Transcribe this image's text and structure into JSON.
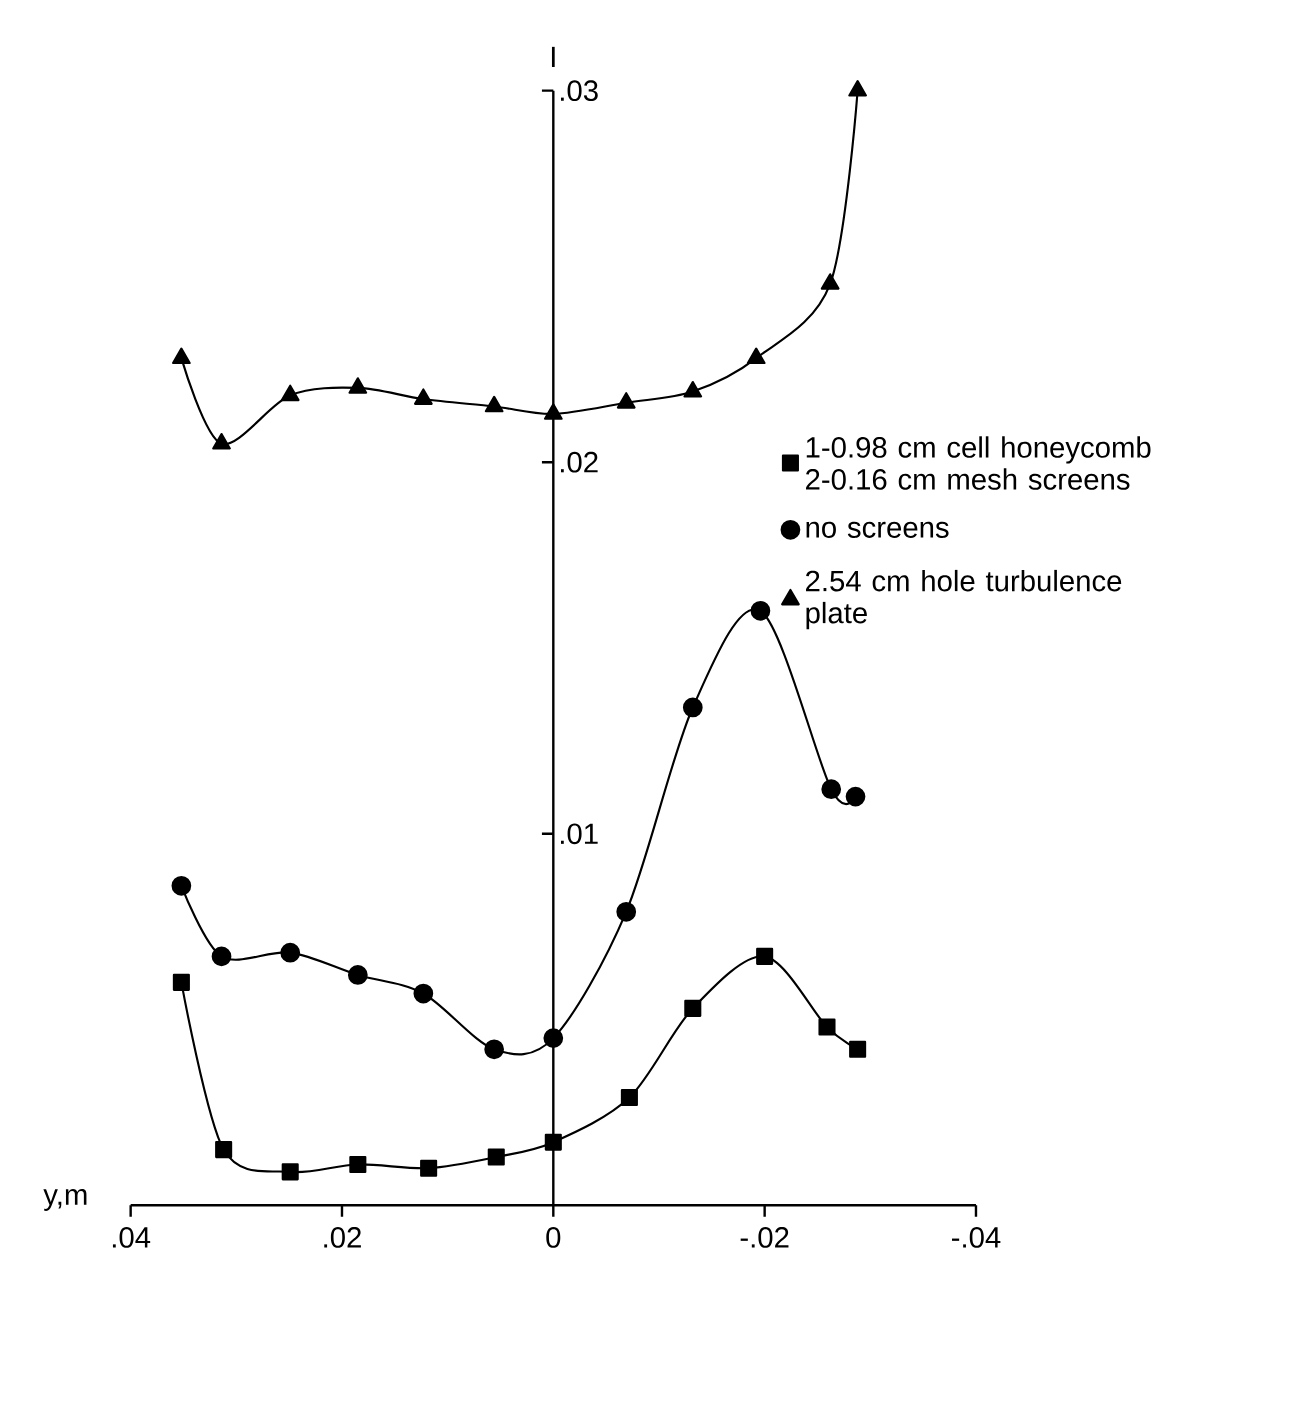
{
  "chart_data": {
    "type": "line",
    "xlabel": "y,m",
    "ylabel": "I",
    "xlim": [
      0.04,
      -0.04
    ],
    "ylim": [
      0,
      0.03
    ],
    "xticks": [
      {
        "value": 0.04,
        "label": ".04"
      },
      {
        "value": 0.02,
        "label": ".02"
      },
      0,
      {
        "value": -0.02,
        "label": "-.02"
      },
      {
        "value": -0.04,
        "label": "-.04"
      }
    ],
    "yticks": [
      {
        "value": 0.01,
        "label": ".01"
      },
      {
        "value": 0.02,
        "label": ".02"
      },
      {
        "value": 0.03,
        "label": ".03"
      }
    ],
    "legend": "right",
    "grid": false,
    "series": [
      {
        "name": "1-0.98 cm cell honeycomb 2-0.16 cm mesh screens",
        "color": "#000000",
        "marker": "square",
        "x": [
          0.0352,
          0.0312,
          0.0249,
          0.0185,
          0.0118,
          0.0054,
          0,
          -0.0072,
          -0.0132,
          -0.02,
          -0.0259,
          -0.0288
        ],
        "values": [
          0.006,
          0.0015,
          0.0009,
          0.0011,
          0.001,
          0.0013,
          0.0017,
          0.0029,
          0.0053,
          0.0067,
          0.0048,
          0.0042
        ]
      },
      {
        "name": "no screens",
        "color": "#000000",
        "marker": "circle",
        "x": [
          0.0352,
          0.0314,
          0.0249,
          0.0185,
          0.0123,
          0.0056,
          0,
          -0.0069,
          -0.0132,
          -0.0196,
          -0.0263,
          -0.0286
        ],
        "values": [
          0.0086,
          0.0067,
          0.0068,
          0.0062,
          0.0057,
          0.0042,
          0.0045,
          0.0079,
          0.0134,
          0.016,
          0.0112,
          0.011
        ]
      },
      {
        "name": "2.54 cm hole turbulence plate",
        "color": "#000000",
        "marker": "triangle",
        "x": [
          0.0352,
          0.0314,
          0.0249,
          0.0185,
          0.0123,
          0.0056,
          0,
          -0.0069,
          -0.0132,
          -0.0192,
          -0.0262,
          -0.0288
        ],
        "values": [
          0.0228,
          0.0205,
          0.0218,
          0.022,
          0.0217,
          0.0215,
          0.0213,
          0.0216,
          0.0219,
          0.0228,
          0.0248,
          0.03
        ]
      }
    ]
  }
}
